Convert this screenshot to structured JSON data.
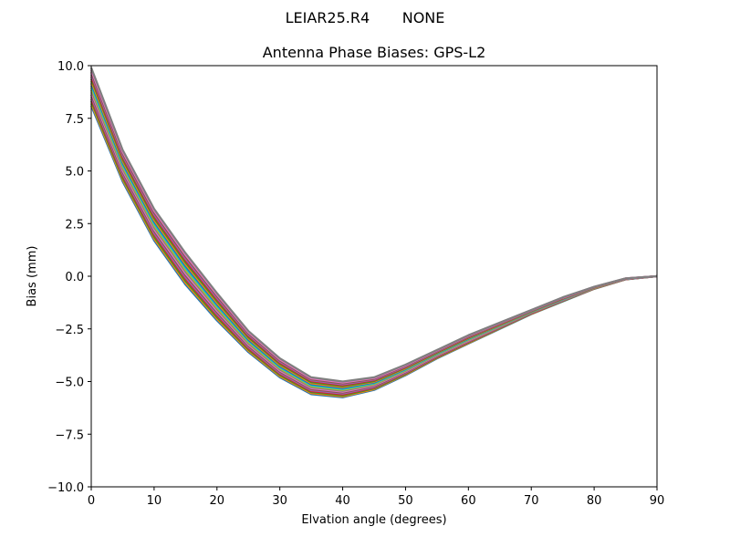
{
  "chart_data": {
    "type": "line",
    "suptitle": "LEIAR25.R4       NONE",
    "title": "Antenna Phase Biases: GPS-L2",
    "xlabel": "Elvation angle (degrees)",
    "ylabel": "Bias (mm)",
    "xlim": [
      0,
      90
    ],
    "ylim": [
      -10,
      10
    ],
    "xticks": [
      0,
      10,
      20,
      30,
      40,
      50,
      60,
      70,
      80,
      90
    ],
    "yticks": [
      10.0,
      7.5,
      5.0,
      2.5,
      0.0,
      -2.5,
      -5.0,
      -7.5,
      -10.0
    ],
    "ytick_labels": [
      "10.0",
      "7.5",
      "5.0",
      "2.5",
      "0.0",
      "−2.5",
      "−5.0",
      "−7.5",
      "−10.0"
    ],
    "grid": false,
    "legend": null,
    "x": [
      0,
      5,
      10,
      15,
      20,
      25,
      30,
      35,
      40,
      45,
      50,
      55,
      60,
      65,
      70,
      75,
      80,
      85,
      90
    ],
    "series_count": 18,
    "envelope": {
      "upper": [
        9.9,
        6.0,
        3.2,
        1.1,
        -0.8,
        -2.6,
        -3.9,
        -4.8,
        -5.0,
        -4.8,
        -4.2,
        -3.5,
        -2.8,
        -2.2,
        -1.6,
        -1.0,
        -0.5,
        -0.1,
        0.0
      ],
      "lower": [
        8.1,
        4.5,
        1.7,
        -0.4,
        -2.1,
        -3.6,
        -4.8,
        -5.6,
        -5.75,
        -5.4,
        -4.7,
        -3.9,
        -3.2,
        -2.5,
        -1.8,
        -1.2,
        -0.6,
        -0.15,
        0.0
      ]
    },
    "colors": [
      "#1f77b4",
      "#ff7f0e",
      "#2ca02c",
      "#d62728",
      "#9467bd",
      "#8c564b",
      "#e377c2",
      "#7f7f7f",
      "#bcbd22",
      "#17becf"
    ],
    "note": "Multiple azimuth series (one line each) forming a band between the lower and upper envelope; all converge to 0.0 at 90 degrees."
  }
}
